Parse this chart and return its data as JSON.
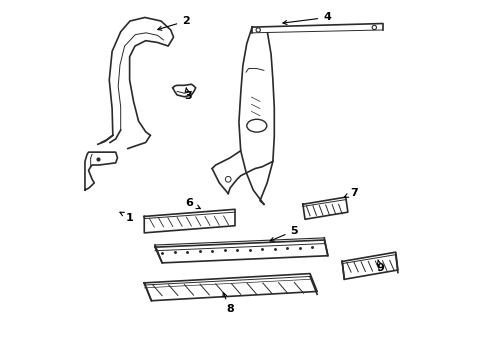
{
  "background_color": "#ffffff",
  "line_color": "#2a2a2a",
  "label_color": "#000000",
  "figsize": [
    4.9,
    3.6
  ],
  "dpi": 100,
  "labels_info": [
    [
      2,
      0.335,
      0.945,
      0.245,
      0.918
    ],
    [
      3,
      0.34,
      0.735,
      0.335,
      0.76
    ],
    [
      4,
      0.73,
      0.955,
      0.595,
      0.938
    ],
    [
      1,
      0.178,
      0.395,
      0.14,
      0.415
    ],
    [
      6,
      0.345,
      0.435,
      0.385,
      0.415
    ],
    [
      5,
      0.638,
      0.358,
      0.56,
      0.325
    ],
    [
      7,
      0.805,
      0.465,
      0.768,
      0.447
    ],
    [
      8,
      0.458,
      0.138,
      0.435,
      0.195
    ],
    [
      9,
      0.878,
      0.255,
      0.872,
      0.278
    ]
  ]
}
